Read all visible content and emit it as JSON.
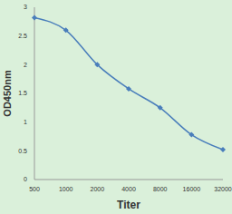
{
  "chart_data": {
    "type": "line",
    "x_label": "Titer",
    "y_label": "OD450nm",
    "categories": [
      "500",
      "1000",
      "2000",
      "4000",
      "8000",
      "16000",
      "32000"
    ],
    "values": [
      2.82,
      2.6,
      2.0,
      1.58,
      1.25,
      0.78,
      0.52
    ],
    "color": "#4a7ebb",
    "marker": "diamond",
    "ylim": [
      0,
      3
    ],
    "yticks": [
      0,
      0.5,
      1,
      1.5,
      2,
      2.5,
      3
    ],
    "grid": false
  }
}
